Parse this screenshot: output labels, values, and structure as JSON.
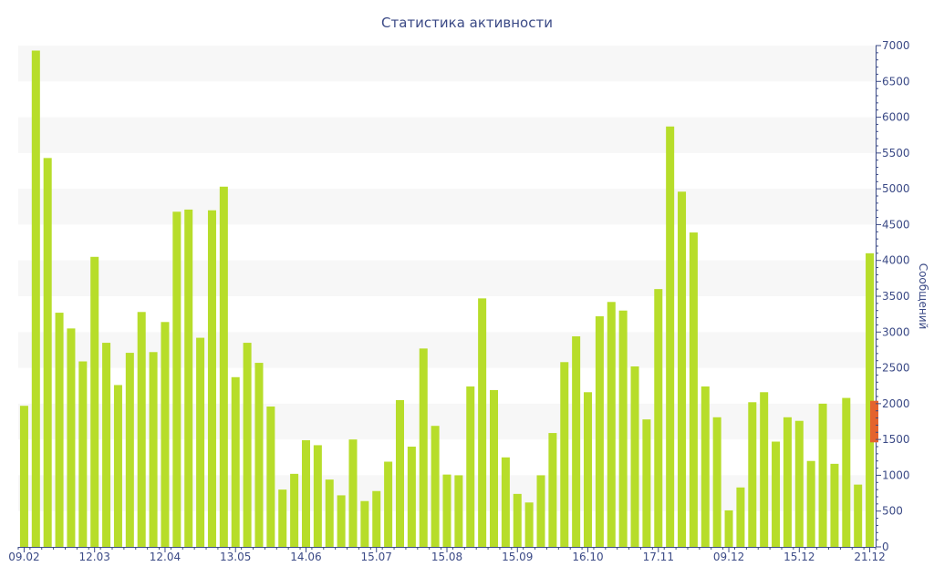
{
  "chart_data": {
    "type": "bar",
    "title": "Статистика активности",
    "ylabel": "Сообщений",
    "xlabel": "",
    "ylim": [
      0,
      7000
    ],
    "y_ticks": [
      0,
      500,
      1000,
      1500,
      2000,
      2500,
      3000,
      3500,
      4000,
      4500,
      5000,
      5500,
      6000,
      6500,
      7000
    ],
    "y_axis_side": "right",
    "grid": "alternating horizontal bands",
    "colors": {
      "bar": "#b7dd2a",
      "marker": "#e4632d",
      "axis": "#3b4a86",
      "band": "#f7f7f7"
    },
    "x_tick_labels": [
      {
        "index": 0,
        "label": "09.02"
      },
      {
        "index": 6,
        "label": "12.03"
      },
      {
        "index": 12,
        "label": "12.04"
      },
      {
        "index": 18,
        "label": "13.05"
      },
      {
        "index": 24,
        "label": "14.06"
      },
      {
        "index": 30,
        "label": "15.07"
      },
      {
        "index": 36,
        "label": "15.08"
      },
      {
        "index": 42,
        "label": "15.09"
      },
      {
        "index": 48,
        "label": "16.10"
      },
      {
        "index": 54,
        "label": "17.11"
      },
      {
        "index": 60,
        "label": "09.12"
      },
      {
        "index": 66,
        "label": "15.12"
      },
      {
        "index": 72,
        "label": "21.12"
      }
    ],
    "values": [
      1970,
      6930,
      5430,
      3270,
      3050,
      2590,
      4050,
      2850,
      2260,
      2710,
      3280,
      2720,
      3140,
      4680,
      4710,
      2920,
      4700,
      5030,
      2370,
      2850,
      2570,
      1960,
      800,
      1020,
      1490,
      1420,
      940,
      720,
      1500,
      640,
      780,
      1190,
      2050,
      1400,
      2770,
      1690,
      1010,
      1000,
      2240,
      3470,
      2190,
      1250,
      740,
      620,
      1000,
      1590,
      2580,
      2940,
      2160,
      3220,
      3420,
      3300,
      2520,
      1780,
      3600,
      5870,
      4960,
      4390,
      2240,
      1810,
      510,
      830,
      2020,
      2160,
      1470,
      1810,
      1760,
      1200,
      2000,
      1160,
      2080,
      870,
      4100
    ],
    "marker": {
      "type": "range",
      "from": 1460,
      "to": 2040
    }
  }
}
